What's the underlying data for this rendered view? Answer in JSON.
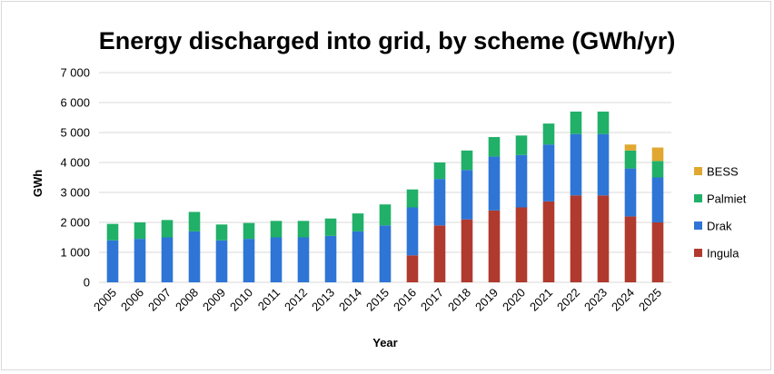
{
  "chart_data": {
    "type": "bar",
    "stacked": true,
    "title": "Energy discharged into grid, by scheme (GWh/yr)",
    "xlabel": "Year",
    "ylabel": "GWh",
    "ylim": [
      0,
      7000
    ],
    "yticks": [
      0,
      1000,
      2000,
      3000,
      4000,
      5000,
      6000,
      7000
    ],
    "ytick_labels": [
      "0",
      "1 000",
      "2 000",
      "3 000",
      "4 000",
      "5 000",
      "6 000",
      "7 000"
    ],
    "grid": true,
    "legend_position": "right",
    "categories": [
      "2005",
      "2006",
      "2007",
      "2008",
      "2009",
      "2010",
      "2011",
      "2012",
      "2013",
      "2014",
      "2015",
      "2016",
      "2017",
      "2018",
      "2019",
      "2020",
      "2021",
      "2022",
      "2023",
      "2024",
      "2025"
    ],
    "series": [
      {
        "name": "Ingula",
        "color": "#b03a2e",
        "values": [
          0,
          0,
          0,
          0,
          0,
          0,
          0,
          0,
          0,
          0,
          0,
          900,
          1900,
          2100,
          2400,
          2500,
          2700,
          2900,
          2900,
          2200,
          2000
        ]
      },
      {
        "name": "Drak",
        "color": "#2e75d6",
        "values": [
          1400,
          1450,
          1500,
          1700,
          1400,
          1450,
          1500,
          1500,
          1550,
          1700,
          1900,
          1600,
          1550,
          1650,
          1800,
          1750,
          1900,
          2050,
          2050,
          1600,
          1500
        ]
      },
      {
        "name": "Palmiet",
        "color": "#20b068",
        "values": [
          550,
          550,
          580,
          650,
          530,
          530,
          550,
          550,
          580,
          600,
          700,
          600,
          550,
          650,
          650,
          650,
          700,
          750,
          750,
          600,
          550
        ]
      },
      {
        "name": "BESS",
        "color": "#e0a830",
        "values": [
          0,
          0,
          0,
          0,
          0,
          0,
          0,
          0,
          0,
          0,
          0,
          0,
          0,
          0,
          0,
          0,
          0,
          0,
          0,
          200,
          450
        ]
      }
    ]
  }
}
